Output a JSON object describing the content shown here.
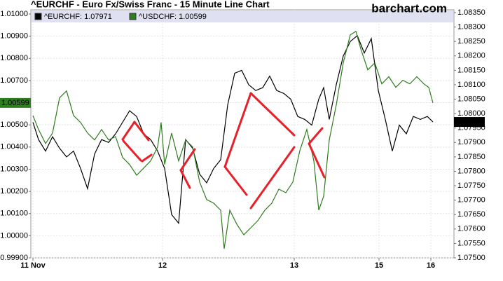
{
  "chart_data": {
    "type": "line",
    "title": "^EURCHF - Euro Fx/Swiss Franc - 15 Minute Line Chart",
    "source": "barchart.com",
    "xlim": [
      0,
      604
    ],
    "xticks": [
      {
        "value": 3,
        "label": "11 Nov"
      },
      {
        "value": 188,
        "label": "12"
      },
      {
        "value": 376,
        "label": "13"
      },
      {
        "value": 497,
        "label": "15"
      },
      {
        "value": 571,
        "label": "16"
      }
    ],
    "ylim": [
      0.999,
      1.01
    ],
    "yticks": [
      {
        "value": 0.999,
        "label": "0.99900"
      },
      {
        "value": 1.0,
        "label": "1.00000"
      },
      {
        "value": 1.001,
        "label": "1.00100"
      },
      {
        "value": 1.002,
        "label": "1.00200"
      },
      {
        "value": 1.003,
        "label": "1.00300"
      },
      {
        "value": 1.004,
        "label": "1.00400"
      },
      {
        "value": 1.005,
        "label": "1.00500"
      },
      {
        "value": 1.006,
        "label": "1.00600"
      },
      {
        "value": 1.007,
        "label": "1.00700"
      },
      {
        "value": 1.008,
        "label": "1.00800"
      },
      {
        "value": 1.009,
        "label": "1.00900"
      },
      {
        "value": 1.01,
        "label": "1.01000"
      }
    ],
    "y2lim": [
      1.075,
      1.0835
    ],
    "y2ticks": [
      {
        "value": 1.075,
        "label": "1.07500"
      },
      {
        "value": 1.0755,
        "label": "1.07550"
      },
      {
        "value": 1.076,
        "label": "1.07600"
      },
      {
        "value": 1.0765,
        "label": "1.07650"
      },
      {
        "value": 1.077,
        "label": "1.07700"
      },
      {
        "value": 1.0775,
        "label": "1.07750"
      },
      {
        "value": 1.078,
        "label": "1.07800"
      },
      {
        "value": 1.0785,
        "label": "1.07850"
      },
      {
        "value": 1.079,
        "label": "1.07900"
      },
      {
        "value": 1.0795,
        "label": "1.07950"
      },
      {
        "value": 1.08,
        "label": "1.08000"
      },
      {
        "value": 1.0805,
        "label": "1.08050"
      },
      {
        "value": 1.081,
        "label": "1.08100"
      },
      {
        "value": 1.0815,
        "label": "1.08150"
      },
      {
        "value": 1.082,
        "label": "1.08200"
      },
      {
        "value": 1.0825,
        "label": "1.08250"
      },
      {
        "value": 1.083,
        "label": "1.08300"
      },
      {
        "value": 1.0835,
        "label": "1.08350"
      }
    ],
    "grid": true,
    "series": [
      {
        "name": "^EURCHF: 1.07971",
        "color": "#000000",
        "axis": "y2",
        "x": [
          3,
          11,
          21,
          31,
          41,
          51,
          61,
          71,
          81,
          91,
          101,
          111,
          121,
          131,
          141,
          151,
          161,
          171,
          181,
          191,
          201,
          211,
          221,
          231,
          241,
          251,
          261,
          271,
          281,
          291,
          301,
          311,
          321,
          331,
          341,
          351,
          361,
          371,
          381,
          391,
          401,
          411,
          418,
          426,
          436,
          446,
          456,
          466,
          476,
          486,
          496,
          506,
          516,
          526,
          536,
          546,
          556,
          566,
          574
        ],
        "values": [
          1.0797,
          1.0791,
          1.0787,
          1.0792,
          1.0788,
          1.0785,
          1.0787,
          1.0781,
          1.0774,
          1.0786,
          1.0791,
          1.079,
          1.0793,
          1.0797,
          1.0801,
          1.0799,
          1.0793,
          1.0791,
          1.0787,
          1.0781,
          1.0765,
          1.0762,
          1.0791,
          1.0788,
          1.0779,
          1.0776,
          1.0781,
          1.0784,
          1.0803,
          1.0814,
          1.0815,
          1.081,
          1.0808,
          1.0809,
          1.0813,
          1.0808,
          1.0807,
          1.0805,
          1.0799,
          1.0798,
          1.0796,
          1.0805,
          1.0809,
          1.0798,
          1.081,
          1.082,
          1.0825,
          1.0827,
          1.0821,
          1.0826,
          1.0808,
          1.0798,
          1.0787,
          1.0796,
          1.0793,
          1.0799,
          1.0798,
          1.0799,
          1.07971
        ]
      },
      {
        "name": "^USDCHF: 1.00599",
        "color": "#2e7d1e",
        "axis": "y",
        "x": [
          3,
          11,
          21,
          31,
          41,
          51,
          61,
          71,
          81,
          91,
          101,
          111,
          121,
          131,
          141,
          151,
          161,
          171,
          181,
          186,
          191,
          201,
          211,
          221,
          231,
          241,
          251,
          261,
          271,
          276,
          284,
          294,
          304,
          314,
          324,
          334,
          344,
          354,
          364,
          374,
          384,
          394,
          404,
          411,
          418,
          426,
          436,
          446,
          456,
          464,
          471,
          481,
          491,
          501,
          511,
          521,
          531,
          541,
          551,
          561,
          568,
          574
        ],
        "values": [
          1.00542,
          1.00479,
          1.00416,
          1.00463,
          1.00622,
          1.00653,
          1.00542,
          1.00511,
          1.00463,
          1.00432,
          1.00479,
          1.00432,
          1.00447,
          1.00353,
          1.00321,
          1.00273,
          1.00305,
          1.00337,
          1.004,
          1.00511,
          1.00321,
          1.00463,
          1.00337,
          1.00432,
          1.004,
          1.00242,
          1.00163,
          1.00147,
          1.00115,
          0.99941,
          1.00115,
          1.00052,
          1.00004,
          1.00036,
          1.00068,
          1.00115,
          1.00147,
          1.0021,
          1.00194,
          1.00242,
          1.00384,
          1.00479,
          1.00337,
          1.00115,
          1.00178,
          1.00432,
          1.0059,
          1.0078,
          1.00906,
          1.00922,
          1.00843,
          1.00748,
          1.0078,
          1.00685,
          1.00717,
          1.00669,
          1.00701,
          1.00685,
          1.00717,
          1.00685,
          1.00669,
          1.00599
        ]
      }
    ]
  }
}
